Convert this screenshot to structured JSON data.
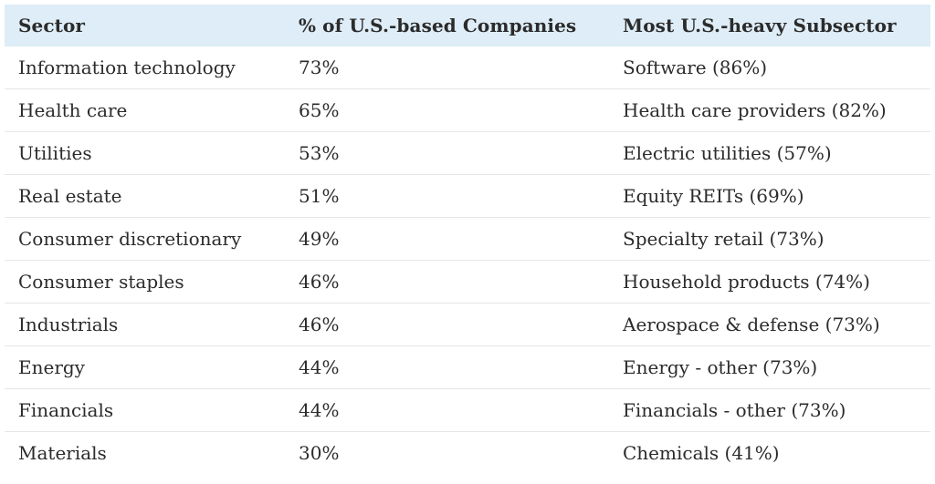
{
  "headers": {
    "sector": "Sector",
    "pct": "% of U.S.-based Companies",
    "subsector": "Most U.S.-heavy Subsector"
  },
  "rows": [
    {
      "sector": "Information technology",
      "pct": "73%",
      "subsector": "Software (86%)"
    },
    {
      "sector": "Health care",
      "pct": "65%",
      "subsector": "Health care providers (82%)"
    },
    {
      "sector": "Utilities",
      "pct": "53%",
      "subsector": "Electric utilities (57%)"
    },
    {
      "sector": "Real estate",
      "pct": "51%",
      "subsector": "Equity REITs (69%)"
    },
    {
      "sector": "Consumer discretionary",
      "pct": "49%",
      "subsector": "Specialty retail (73%)"
    },
    {
      "sector": "Consumer staples",
      "pct": "46%",
      "subsector": "Household products (74%)"
    },
    {
      "sector": "Industrials",
      "pct": "46%",
      "subsector": "Aerospace & defense (73%)"
    },
    {
      "sector": "Energy",
      "pct": "44%",
      "subsector": "Energy - other (73%)"
    },
    {
      "sector": "Financials",
      "pct": "44%",
      "subsector": "Financials - other (73%)"
    },
    {
      "sector": "Materials",
      "pct": "30%",
      "subsector": "Chemicals (41%)"
    }
  ],
  "colors": {
    "header_bg": "#deedf7",
    "text": "#2b2b2b",
    "row_divider": "#e6e6e6"
  }
}
